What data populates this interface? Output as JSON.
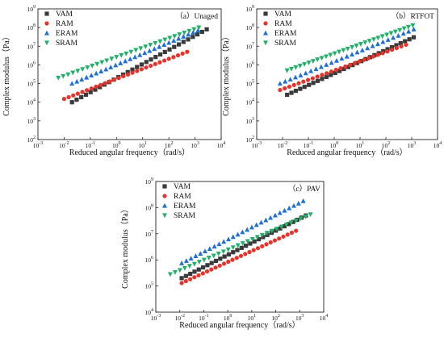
{
  "series_styles": [
    {
      "name": "VAM",
      "marker": "square",
      "color": "#3a3a3a"
    },
    {
      "name": "RAM",
      "marker": "circle",
      "color": "#e8332a"
    },
    {
      "name": "ERAM",
      "marker": "triangle-up",
      "color": "#1f6fd6"
    },
    {
      "name": "SRAM",
      "marker": "triangle-down",
      "color": "#22b069"
    }
  ],
  "chart_data": [
    {
      "type": "scatter",
      "title": "（a）Unaged",
      "xlabel": "Reduced angular frequency（rad/s）",
      "ylabel": "Complex modulus（Pa）",
      "x_scale": "log",
      "y_scale": "log",
      "xlim": [
        0.001,
        10000
      ],
      "ylim": [
        100,
        1000000000
      ],
      "x_ticks": [
        "10-3",
        "10-2",
        "10-1",
        "100",
        "101",
        "102",
        "103",
        "104"
      ],
      "y_ticks": [
        "102",
        "103",
        "104",
        "105",
        "106",
        "107",
        "108",
        "109"
      ],
      "legend_position": "top-left",
      "series": [
        {
          "name": "VAM",
          "x_range": [
            0.02,
            2800
          ],
          "y_range": [
            10000,
            80000000
          ]
        },
        {
          "name": "RAM",
          "x_range": [
            0.01,
            500
          ],
          "y_range": [
            15000,
            5000000
          ]
        },
        {
          "name": "ERAM",
          "x_range": [
            0.02,
            1300
          ],
          "y_range": [
            100000,
            70000000
          ]
        },
        {
          "name": "SRAM",
          "x_range": [
            0.006,
            1400
          ],
          "y_range": [
            200000,
            100000000
          ]
        }
      ]
    },
    {
      "type": "scatter",
      "title": "（b）RTFOT",
      "xlabel": "Reduced angular frequency（rad/s）",
      "ylabel": "Complex modulus（Pa）",
      "x_scale": "log",
      "y_scale": "log",
      "xlim": [
        0.001,
        10000
      ],
      "ylim": [
        100,
        1000000000
      ],
      "x_ticks": [
        "10-3",
        "10-2",
        "10-1",
        "100",
        "101",
        "102",
        "103",
        "104"
      ],
      "y_ticks": [
        "102",
        "103",
        "104",
        "105",
        "106",
        "107",
        "108",
        "109"
      ],
      "legend_position": "top-left",
      "series": [
        {
          "name": "VAM",
          "x_range": [
            0.015,
            1200
          ],
          "y_range": [
            25000,
            30000000
          ]
        },
        {
          "name": "RAM",
          "x_range": [
            0.008,
            600
          ],
          "y_range": [
            45000,
            12000000
          ]
        },
        {
          "name": "ERAM",
          "x_range": [
            0.008,
            1200
          ],
          "y_range": [
            100000,
            80000000
          ]
        },
        {
          "name": "SRAM",
          "x_range": [
            0.015,
            1100
          ],
          "y_range": [
            500000,
            130000000
          ]
        }
      ]
    },
    {
      "type": "scatter",
      "title": "（c）PAV",
      "xlabel": "Reduced angular frequency（rad/s）",
      "ylabel": "Complex modulus（Pa）",
      "x_scale": "log",
      "y_scale": "log",
      "xlim": [
        0.001,
        10000
      ],
      "ylim": [
        10000,
        1000000000
      ],
      "x_ticks": [
        "10-3",
        "10-2",
        "10-1",
        "100",
        "101",
        "102",
        "103",
        "104"
      ],
      "y_ticks": [
        "104",
        "105",
        "106",
        "107",
        "108",
        "109"
      ],
      "legend_position": "top-left",
      "series": [
        {
          "name": "VAM",
          "x_range": [
            0.012,
            1800
          ],
          "y_range": [
            200000,
            50000000
          ]
        },
        {
          "name": "RAM",
          "x_range": [
            0.012,
            700
          ],
          "y_range": [
            130000,
            13000000
          ]
        },
        {
          "name": "ERAM",
          "x_range": [
            0.012,
            1400
          ],
          "y_range": [
            750000,
            180000000
          ]
        },
        {
          "name": "SRAM",
          "x_range": [
            0.004,
            2800
          ],
          "y_range": [
            280000,
            55000000
          ]
        }
      ]
    }
  ]
}
